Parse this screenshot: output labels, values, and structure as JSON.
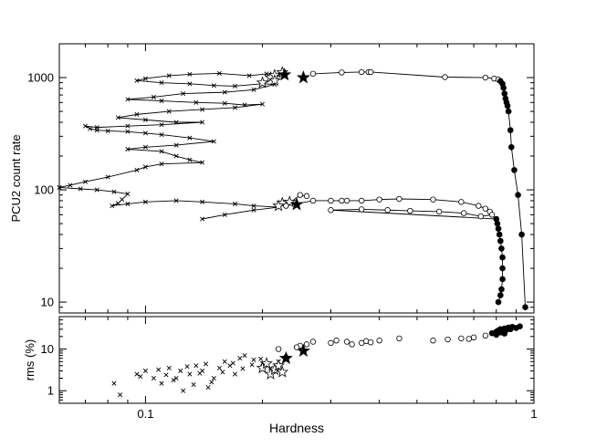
{
  "chart_data": [
    {
      "type": "line",
      "panel": "top",
      "ylabel": "PCU2 count  rate",
      "xscale": "log",
      "yscale": "log",
      "xlim": [
        0.06,
        1.0
      ],
      "ylim": [
        8,
        2000
      ],
      "y_ticks": [
        "10",
        "100",
        "1000"
      ],
      "legend": "none",
      "grid": false,
      "series": [
        {
          "marker": "cross",
          "points": [
            [
              0.22,
              1050
            ],
            [
              0.205,
              1080
            ],
            [
              0.185,
              1040
            ],
            [
              0.155,
              1090
            ],
            [
              0.13,
              1070
            ],
            [
              0.115,
              1040
            ],
            [
              0.1,
              980
            ],
            [
              0.095,
              940
            ],
            [
              0.11,
              900
            ],
            [
              0.13,
              880
            ],
            [
              0.15,
              850
            ],
            [
              0.17,
              840
            ],
            [
              0.2,
              880
            ],
            [
              0.215,
              870
            ],
            [
              0.19,
              780
            ],
            [
              0.16,
              740
            ],
            [
              0.125,
              720
            ],
            [
              0.105,
              670
            ],
            [
              0.09,
              640
            ],
            [
              0.11,
              620
            ],
            [
              0.135,
              600
            ],
            [
              0.16,
              590
            ],
            [
              0.18,
              570
            ],
            [
              0.2,
              580
            ],
            [
              0.17,
              540
            ],
            [
              0.14,
              520
            ],
            [
              0.115,
              500
            ],
            [
              0.095,
              470
            ],
            [
              0.085,
              440
            ],
            [
              0.1,
              420
            ],
            [
              0.12,
              400
            ],
            [
              0.14,
              400
            ],
            [
              0.11,
              380
            ],
            [
              0.09,
              370
            ],
            [
              0.075,
              360
            ],
            [
              0.07,
              370
            ],
            [
              0.072,
              350
            ],
            [
              0.075,
              340
            ],
            [
              0.08,
              335
            ],
            [
              0.09,
              330
            ],
            [
              0.1,
              320
            ],
            [
              0.11,
              310
            ],
            [
              0.13,
              290
            ],
            [
              0.15,
              270
            ],
            [
              0.12,
              250
            ],
            [
              0.1,
              240
            ],
            [
              0.09,
              230
            ],
            [
              0.11,
              220
            ],
            [
              0.12,
              200
            ],
            [
              0.13,
              185
            ],
            [
              0.14,
              175
            ],
            [
              0.11,
              170
            ],
            [
              0.1,
              160
            ],
            [
              0.095,
              150
            ],
            [
              0.08,
              130
            ],
            [
              0.07,
              118
            ],
            [
              0.064,
              110
            ],
            [
              0.06,
              105
            ],
            [
              0.068,
              102
            ],
            [
              0.075,
              100
            ],
            [
              0.083,
              96
            ],
            [
              0.09,
              92
            ],
            [
              0.087,
              82
            ],
            [
              0.085,
              76
            ],
            [
              0.082,
              72
            ],
            [
              0.09,
              75
            ],
            [
              0.1,
              78
            ],
            [
              0.12,
              80
            ],
            [
              0.14,
              78
            ],
            [
              0.17,
              75
            ],
            [
              0.19,
              72
            ],
            [
              0.22,
              70
            ],
            [
              0.19,
              66
            ],
            [
              0.16,
              60
            ],
            [
              0.14,
              55
            ]
          ]
        },
        {
          "marker": "star-open",
          "points": [
            [
              0.2,
              900
            ],
            [
              0.21,
              1000
            ],
            [
              0.215,
              1050
            ],
            [
              0.225,
              1110
            ],
            [
              0.215,
              940
            ],
            [
              0.225,
              76
            ],
            [
              0.235,
              78
            ],
            [
              0.22,
              72
            ]
          ]
        },
        {
          "marker": "star-filled",
          "points": [
            [
              0.228,
              1060
            ],
            [
              0.255,
              1000
            ],
            [
              0.245,
              74
            ]
          ]
        },
        {
          "marker": "circle-open",
          "points": [
            [
              0.27,
              1080
            ],
            [
              0.32,
              1110
            ],
            [
              0.36,
              1120
            ],
            [
              0.375,
              1120
            ],
            [
              0.38,
              1120
            ],
            [
              0.59,
              1010
            ],
            [
              0.75,
              1000
            ],
            [
              0.79,
              980
            ],
            [
              0.81,
              960
            ],
            [
              0.26,
              88
            ],
            [
              0.25,
              90
            ],
            [
              0.23,
              72
            ],
            [
              0.27,
              80
            ],
            [
              0.3,
              80
            ],
            [
              0.32,
              80
            ],
            [
              0.33,
              80
            ],
            [
              0.36,
              80
            ],
            [
              0.4,
              82
            ],
            [
              0.45,
              83
            ],
            [
              0.55,
              82
            ],
            [
              0.65,
              78
            ],
            [
              0.72,
              72
            ],
            [
              0.75,
              68
            ],
            [
              0.77,
              64
            ],
            [
              0.78,
              60
            ],
            [
              0.73,
              58
            ],
            [
              0.66,
              62
            ],
            [
              0.57,
              64
            ],
            [
              0.48,
              65
            ],
            [
              0.42,
              66
            ],
            [
              0.36,
              67
            ],
            [
              0.3,
              66
            ]
          ]
        },
        {
          "marker": "circle-filled",
          "points": [
            [
              0.82,
              930
            ],
            [
              0.83,
              880
            ],
            [
              0.835,
              810
            ],
            [
              0.84,
              720
            ],
            [
              0.845,
              650
            ],
            [
              0.85,
              600
            ],
            [
              0.855,
              560
            ],
            [
              0.86,
              500
            ],
            [
              0.87,
              340
            ],
            [
              0.875,
              240
            ],
            [
              0.89,
              150
            ],
            [
              0.91,
              90
            ],
            [
              0.93,
              40
            ],
            [
              0.95,
              9
            ],
            [
              0.8,
              55
            ],
            [
              0.805,
              50
            ],
            [
              0.81,
              45
            ],
            [
              0.815,
              40
            ],
            [
              0.82,
              35
            ],
            [
              0.825,
              30
            ],
            [
              0.83,
              25
            ],
            [
              0.83,
              20
            ],
            [
              0.83,
              16
            ],
            [
              0.825,
              13
            ],
            [
              0.82,
              11.5
            ],
            [
              0.81,
              10
            ]
          ]
        }
      ]
    },
    {
      "type": "scatter",
      "panel": "bottom",
      "xlabel": "Hardness",
      "ylabel": "rms (%)",
      "xscale": "log",
      "yscale": "log",
      "xlim": [
        0.06,
        1.0
      ],
      "ylim": [
        0.5,
        60
      ],
      "x_ticks": [
        "0.1",
        "1"
      ],
      "y_ticks": [
        "1",
        "10"
      ],
      "legend": "none",
      "grid": false,
      "series": [
        {
          "marker": "cross",
          "points": [
            [
              0.083,
              1.5
            ],
            [
              0.086,
              0.8
            ],
            [
              0.095,
              2.5
            ],
            [
              0.1,
              3.0
            ],
            [
              0.105,
              2.0
            ],
            [
              0.11,
              1.5
            ],
            [
              0.115,
              3.5
            ],
            [
              0.12,
              2.0
            ],
            [
              0.125,
              1.0
            ],
            [
              0.13,
              2.5
            ],
            [
              0.135,
              4.0
            ],
            [
              0.14,
              3.0
            ],
            [
              0.145,
              1.2
            ],
            [
              0.15,
              2.0
            ],
            [
              0.155,
              3.5
            ],
            [
              0.16,
              5.0
            ],
            [
              0.165,
              4.0
            ],
            [
              0.17,
              2.5
            ],
            [
              0.175,
              6.0
            ],
            [
              0.18,
              7.0
            ],
            [
              0.19,
              5.5
            ],
            [
              0.2,
              4.5
            ],
            [
              0.21,
              3.5
            ],
            [
              0.22,
              5.0
            ],
            [
              0.23,
              6.5
            ],
            [
              0.097,
              2.2
            ],
            [
              0.108,
              3.2
            ],
            [
              0.118,
              1.8
            ],
            [
              0.128,
              3.8
            ],
            [
              0.138,
              2.6
            ],
            [
              0.148,
              1.6
            ],
            [
              0.158,
              2.8
            ],
            [
              0.168,
              4.6
            ],
            [
              0.178,
              3.4
            ],
            [
              0.188,
              4.2
            ],
            [
              0.198,
              5.8
            ],
            [
              0.113,
              2.4
            ],
            [
              0.123,
              3.0
            ],
            [
              0.133,
              1.4
            ],
            [
              0.143,
              4.4
            ]
          ]
        },
        {
          "marker": "star-open",
          "points": [
            [
              0.21,
              2.5
            ],
            [
              0.215,
              3.2
            ],
            [
              0.22,
              4.0
            ],
            [
              0.2,
              3.5
            ],
            [
              0.225,
              2.8
            ],
            [
              0.205,
              4.5
            ]
          ]
        },
        {
          "marker": "star-filled",
          "points": [
            [
              0.23,
              6.0
            ],
            [
              0.255,
              9.0
            ]
          ]
        },
        {
          "marker": "circle-open",
          "points": [
            [
              0.22,
              10.0
            ],
            [
              0.25,
              12.0
            ],
            [
              0.27,
              15.0
            ],
            [
              0.3,
              14.0
            ],
            [
              0.33,
              15.0
            ],
            [
              0.36,
              14.0
            ],
            [
              0.37,
              15.5
            ],
            [
              0.38,
              14.5
            ],
            [
              0.4,
              16.0
            ],
            [
              0.45,
              18.0
            ],
            [
              0.55,
              16.0
            ],
            [
              0.6,
              17.0
            ],
            [
              0.65,
              18.0
            ],
            [
              0.7,
              19.0
            ],
            [
              0.75,
              21.0
            ],
            [
              0.245,
              11.0
            ],
            [
              0.26,
              13.0
            ],
            [
              0.31,
              16.0
            ],
            [
              0.34,
              13.0
            ],
            [
              0.68,
              17.5
            ]
          ]
        },
        {
          "marker": "circle-filled",
          "points": [
            [
              0.78,
              24.0
            ],
            [
              0.8,
              26.0
            ],
            [
              0.81,
              28.0
            ],
            [
              0.82,
              30.0
            ],
            [
              0.83,
              27.0
            ],
            [
              0.84,
              31.0
            ],
            [
              0.85,
              29.0
            ],
            [
              0.86,
              33.0
            ],
            [
              0.87,
              30.0
            ],
            [
              0.88,
              34.0
            ],
            [
              0.9,
              32.0
            ],
            [
              0.92,
              35.0
            ],
            [
              0.8,
              22.0
            ],
            [
              0.82,
              25.0
            ],
            [
              0.84,
              23.5
            ]
          ]
        }
      ]
    }
  ]
}
